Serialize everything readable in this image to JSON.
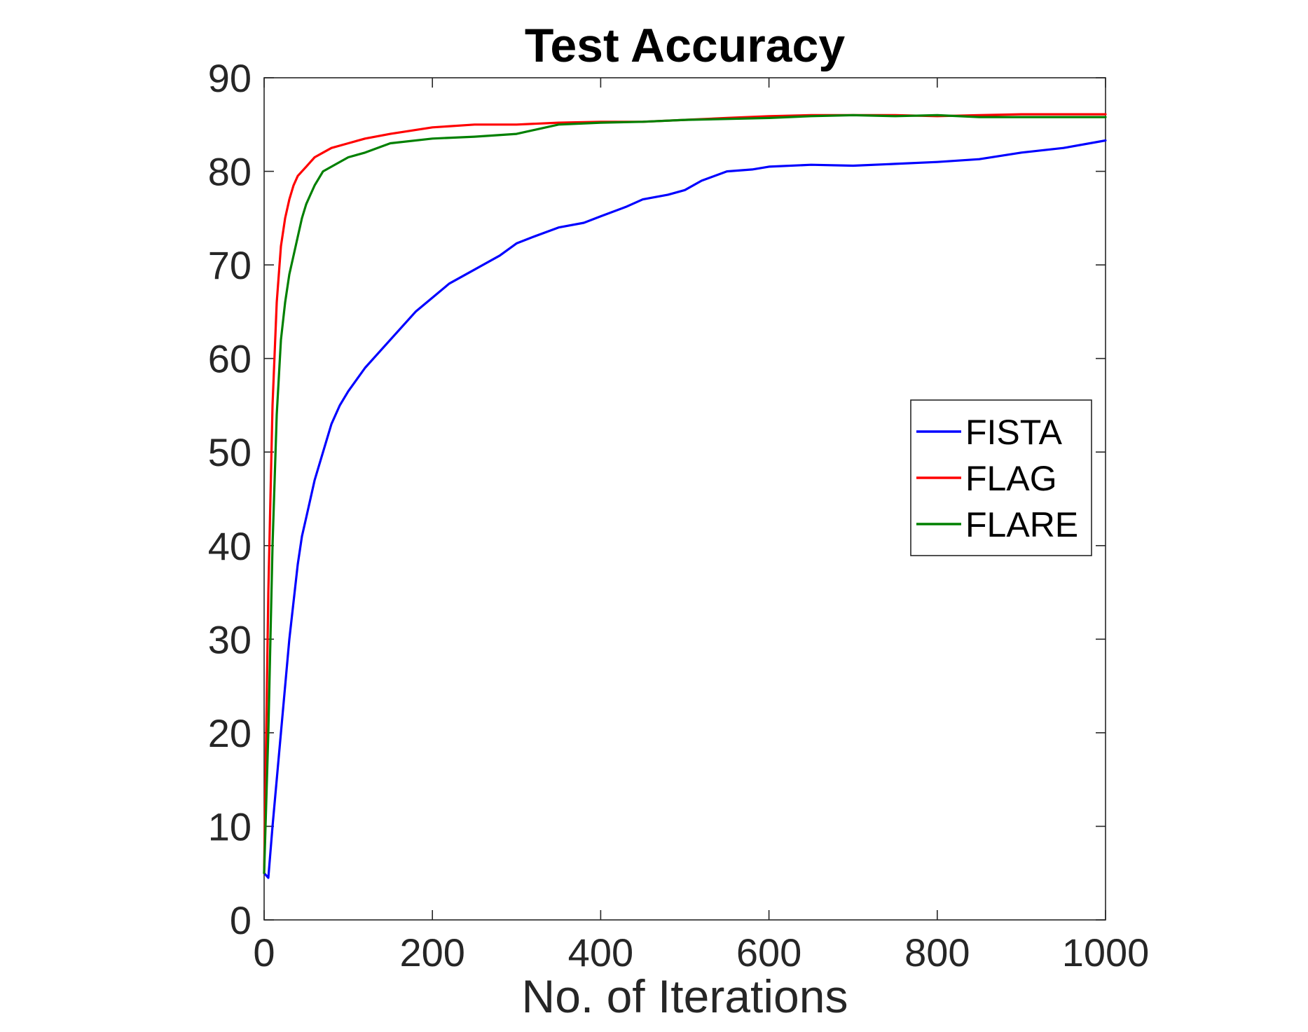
{
  "chart_data": {
    "type": "line",
    "title": "Test Accuracy",
    "xlabel": "No. of Iterations",
    "ylabel": "",
    "xlim": [
      0,
      1000
    ],
    "ylim": [
      0,
      90
    ],
    "xticks": [
      0,
      200,
      400,
      600,
      800,
      1000
    ],
    "yticks": [
      0,
      10,
      20,
      30,
      40,
      50,
      60,
      70,
      80,
      90
    ],
    "grid": false,
    "legend_position": "center-right",
    "series": [
      {
        "name": "FISTA",
        "color": "#0000ff",
        "x": [
          0,
          5,
          10,
          15,
          20,
          25,
          30,
          35,
          40,
          45,
          50,
          55,
          60,
          70,
          80,
          90,
          100,
          120,
          140,
          160,
          180,
          200,
          220,
          250,
          280,
          300,
          320,
          350,
          380,
          400,
          430,
          450,
          480,
          500,
          520,
          550,
          580,
          600,
          650,
          700,
          750,
          800,
          850,
          900,
          950,
          1000
        ],
        "y": [
          5,
          4.5,
          10,
          15,
          20,
          25,
          30,
          34,
          38,
          41,
          43,
          45,
          47,
          50,
          53,
          55,
          56.5,
          59,
          61,
          63,
          65,
          66.5,
          68,
          69.5,
          71,
          72.3,
          73,
          74,
          74.5,
          75.2,
          76.2,
          77,
          77.5,
          78,
          79,
          80,
          80.2,
          80.5,
          80.7,
          80.6,
          80.8,
          81,
          81.3,
          82,
          82.5,
          83.3
        ]
      },
      {
        "name": "FLAG",
        "color": "#ff0000",
        "x": [
          0,
          5,
          10,
          15,
          20,
          25,
          30,
          35,
          40,
          45,
          50,
          55,
          60,
          70,
          80,
          100,
          120,
          150,
          200,
          250,
          300,
          350,
          400,
          450,
          500,
          550,
          600,
          650,
          700,
          750,
          800,
          850,
          900,
          950,
          1000
        ],
        "y": [
          5,
          35,
          55,
          66,
          72,
          75,
          77,
          78.5,
          79.5,
          80,
          80.5,
          81,
          81.5,
          82,
          82.5,
          83,
          83.5,
          84,
          84.7,
          85,
          85,
          85.2,
          85.3,
          85.3,
          85.5,
          85.7,
          85.9,
          86,
          86,
          86,
          85.9,
          86,
          86.1,
          86.1,
          86.1
        ]
      },
      {
        "name": "FLARE",
        "color": "#008000",
        "x": [
          0,
          5,
          10,
          15,
          20,
          25,
          30,
          35,
          40,
          45,
          50,
          55,
          60,
          70,
          80,
          100,
          120,
          150,
          200,
          250,
          300,
          350,
          400,
          450,
          500,
          550,
          600,
          650,
          700,
          750,
          800,
          850,
          900,
          950,
          1000
        ],
        "y": [
          5,
          20,
          40,
          54,
          62,
          66,
          69,
          71,
          73,
          75,
          76.5,
          77.5,
          78.5,
          80,
          80.5,
          81.5,
          82,
          83,
          83.5,
          83.7,
          84,
          85,
          85.2,
          85.3,
          85.5,
          85.6,
          85.7,
          85.9,
          86,
          85.9,
          86,
          85.8,
          85.8,
          85.8,
          85.8
        ]
      }
    ]
  }
}
